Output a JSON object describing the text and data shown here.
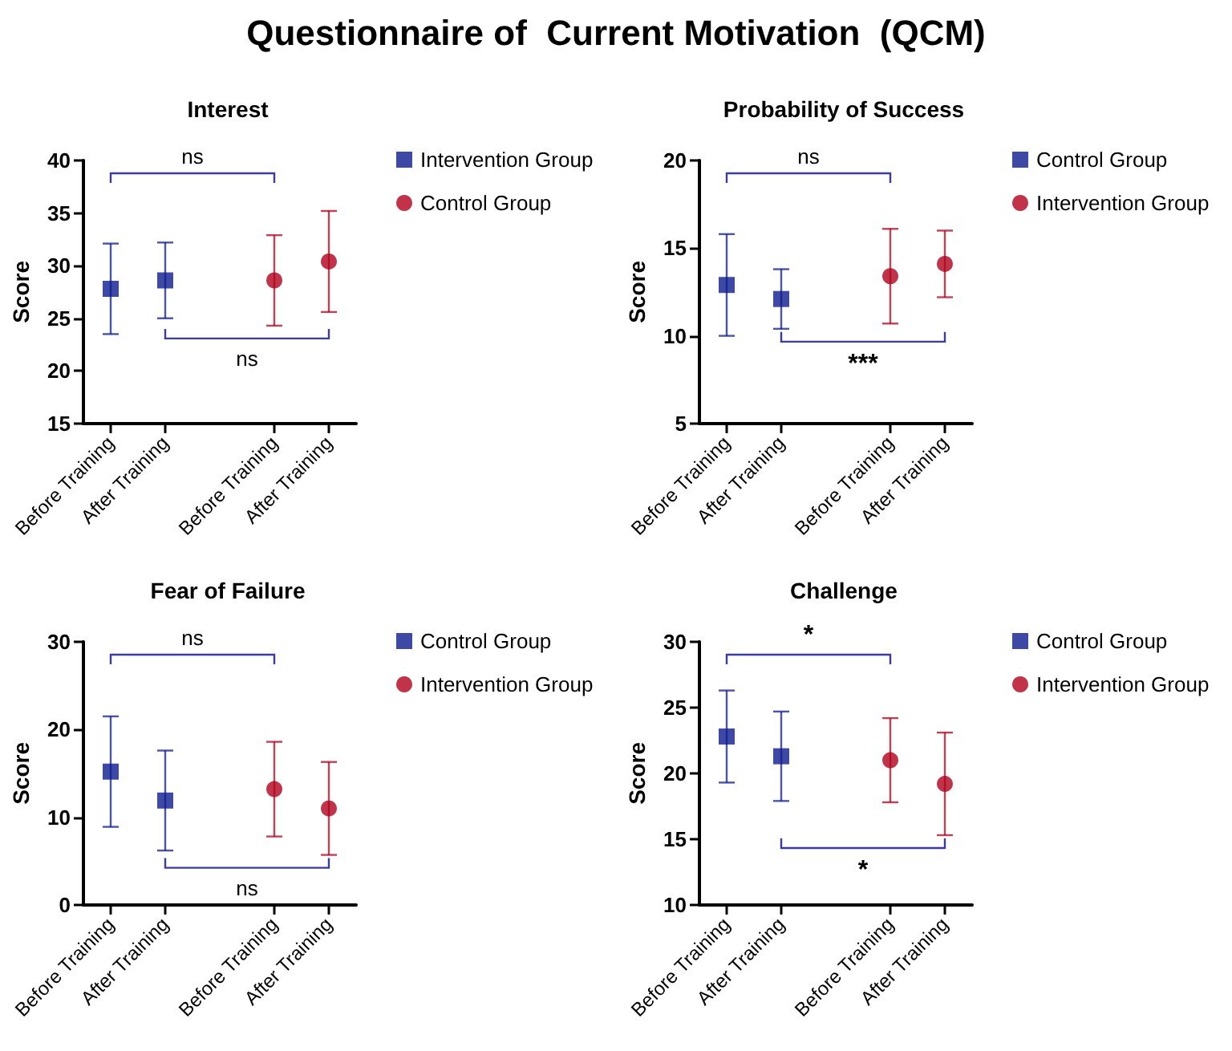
{
  "chart_data": [
    {
      "type": "scatter",
      "title": "Questionnaire of  Current Motivation  (QCM)",
      "subtitle": "Interest",
      "ylabel": "Score",
      "categories": [
        "Before Training",
        "After Training",
        null,
        "Before Training",
        "After Training"
      ],
      "ylim": [
        15,
        40
      ],
      "yticks": [
        15,
        20,
        25,
        30,
        35,
        40
      ],
      "legend": "right",
      "grid": false,
      "annotations": [
        "ns",
        "ns"
      ],
      "series": [
        {
          "name": "Intervention Group",
          "color": "#0d1b8e",
          "marker": "square",
          "values": [
            27.8,
            28.6,
            null,
            null,
            null
          ],
          "errors": [
            [
              23.5,
              32.1
            ],
            [
              25.0,
              32.2
            ],
            null,
            null,
            null
          ]
        },
        {
          "name": "Control Group",
          "color": "#b0001c",
          "marker": "circle",
          "values": [
            null,
            null,
            null,
            28.6,
            30.4
          ],
          "errors": [
            null,
            null,
            null,
            [
              24.3,
              32.9
            ],
            [
              25.6,
              35.2
            ]
          ]
        }
      ]
    },
    {
      "type": "scatter",
      "subtitle": "Probability of Success",
      "ylabel": "Score",
      "categories": [
        "Before Training",
        "After Training",
        null,
        "Before Training",
        "After Training"
      ],
      "ylim": [
        5,
        20
      ],
      "yticks": [
        5,
        10,
        15,
        20
      ],
      "legend": "right",
      "grid": false,
      "annotations": [
        "ns",
        "***"
      ],
      "series": [
        {
          "name": "Control Group",
          "color": "#0d1b8e",
          "marker": "square",
          "values": [
            12.9,
            12.1,
            null,
            null,
            null
          ],
          "errors": [
            [
              10.0,
              15.8
            ],
            [
              10.4,
              13.8
            ],
            null,
            null,
            null
          ]
        },
        {
          "name": "Intervention Group",
          "color": "#b0001c",
          "marker": "circle",
          "values": [
            null,
            null,
            null,
            13.4,
            14.1
          ],
          "errors": [
            null,
            null,
            null,
            [
              10.7,
              16.1
            ],
            [
              12.2,
              16.0
            ]
          ]
        }
      ]
    },
    {
      "type": "scatter",
      "subtitle": "Fear of Failure",
      "ylabel": "Score",
      "categories": [
        "Before Training",
        "After Training",
        null,
        "Before Training",
        "After Training"
      ],
      "ylim": [
        0,
        30
      ],
      "yticks": [
        0,
        10,
        20,
        30
      ],
      "legend": "right",
      "grid": false,
      "annotations": [
        "ns",
        "ns"
      ],
      "series": [
        {
          "name": "Control Group",
          "color": "#0d1b8e",
          "marker": "square",
          "values": [
            15.2,
            11.9,
            null,
            null,
            null
          ],
          "errors": [
            [
              8.9,
              21.5
            ],
            [
              6.2,
              17.6
            ],
            null,
            null,
            null
          ]
        },
        {
          "name": "Intervention Group",
          "color": "#b0001c",
          "marker": "circle",
          "values": [
            null,
            null,
            null,
            13.2,
            11.0
          ],
          "errors": [
            null,
            null,
            null,
            [
              7.8,
              18.6
            ],
            [
              5.7,
              16.3
            ]
          ]
        }
      ]
    },
    {
      "type": "scatter",
      "subtitle": "Challenge",
      "ylabel": "Score",
      "categories": [
        "Before Training",
        "After Training",
        null,
        "Before Training",
        "After Training"
      ],
      "ylim": [
        10,
        30
      ],
      "yticks": [
        10,
        15,
        20,
        25,
        30
      ],
      "legend": "right",
      "grid": false,
      "annotations": [
        "*",
        "*"
      ],
      "series": [
        {
          "name": "Control Group",
          "color": "#0d1b8e",
          "marker": "square",
          "values": [
            22.8,
            21.3,
            null,
            null,
            null
          ],
          "errors": [
            [
              19.3,
              26.3
            ],
            [
              17.9,
              24.7
            ],
            null,
            null,
            null
          ]
        },
        {
          "name": "Intervention Group",
          "color": "#b0001c",
          "marker": "circle",
          "values": [
            null,
            null,
            null,
            21.0,
            19.2
          ],
          "errors": [
            null,
            null,
            null,
            [
              17.8,
              24.2
            ],
            [
              15.3,
              23.1
            ]
          ]
        }
      ]
    }
  ]
}
